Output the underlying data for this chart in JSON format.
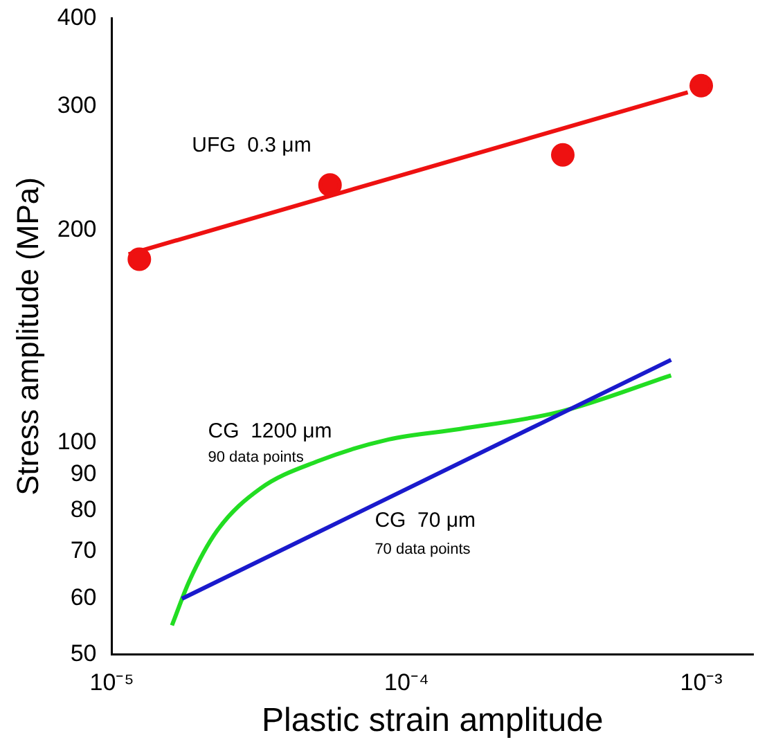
{
  "chart_data": {
    "type": "scatter",
    "xlabel": "Plastic strain amplitude",
    "ylabel": "Stress amplitude (MPa)",
    "log": "xy",
    "grid": false,
    "legend": false,
    "xlim": [
      1e-05,
      0.0015
    ],
    "xticks": [
      {
        "value": 1e-05,
        "label": "10⁻⁵"
      },
      {
        "value": 0.0001,
        "label": "10⁻⁴"
      },
      {
        "value": 0.001,
        "label": "10⁻³"
      }
    ],
    "ylim": [
      50,
      400
    ],
    "yticks": [
      50,
      60,
      70,
      80,
      90,
      100,
      200,
      300,
      400
    ],
    "series": [
      {
        "marker": "circle",
        "color": "#ee1111",
        "x": [
          1.24e-05,
          5.5e-05,
          0.000339,
          0.001
        ],
        "values": [
          182,
          232,
          256,
          321
        ]
      },
      {
        "type": "line",
        "marker": "none",
        "color": "#ee1111",
        "x": [
          1.14e-05,
          0.0009
        ],
        "values": [
          185,
          314
        ]
      },
      {
        "type": "line",
        "marker": "none",
        "color": "#1a1acc",
        "x": [
          1.73e-05,
          0.00079
        ],
        "values": [
          60,
          131
        ]
      },
      {
        "type": "line",
        "marker": "none",
        "color": "#22dd22",
        "x": [
          1.6e-05,
          1.83e-05,
          2.28e-05,
          3.19e-05,
          4.98e-05,
          8.7e-05,
          0.000152,
          0.00033,
          0.00079
        ],
        "values": [
          55,
          63.5,
          75,
          86,
          94,
          101,
          104.5,
          110.5,
          124.5
        ]
      }
    ],
    "annotations": [
      "UFG  0.3 μm",
      "CG  1200 μm",
      "90 data points",
      "CG  70 μm",
      "70 data points"
    ]
  }
}
